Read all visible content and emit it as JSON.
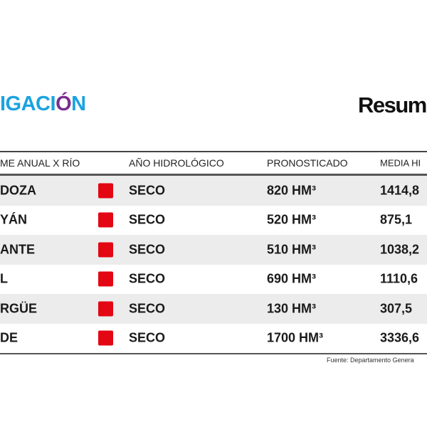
{
  "logo": {
    "text_main": "IGACI",
    "text_wave": "Ó",
    "text_end": "N"
  },
  "title": "Resum",
  "table": {
    "headers": [
      "ME ANUAL X RÍO",
      "AÑO HIDROLÓGICO",
      "PRONOSTICADO",
      "MEDIA HI"
    ],
    "rows": [
      {
        "river": "DOZA",
        "status_color": "#e30613",
        "year": "SECO",
        "forecast": "820  HM³",
        "mean": "1414,8"
      },
      {
        "river": "YÁN",
        "status_color": "#e30613",
        "year": "SECO",
        "forecast": "520  HM³",
        "mean": "875,1"
      },
      {
        "river": "ANTE",
        "status_color": "#e30613",
        "year": "SECO",
        "forecast": "510 HM³",
        "mean": "1038,2"
      },
      {
        "river": "L",
        "status_color": "#e30613",
        "year": "SECO",
        "forecast": "690  HM³",
        "mean": "1110,6"
      },
      {
        "river": "RGÜE",
        "status_color": "#e30613",
        "year": "SECO",
        "forecast": "130  HM³",
        "mean": "307,5"
      },
      {
        "river": "DE",
        "status_color": "#e30613",
        "year": "SECO",
        "forecast": "1700  HM³",
        "mean": "3336,6"
      }
    ]
  },
  "footer": "Fuente: Departamento Genera"
}
